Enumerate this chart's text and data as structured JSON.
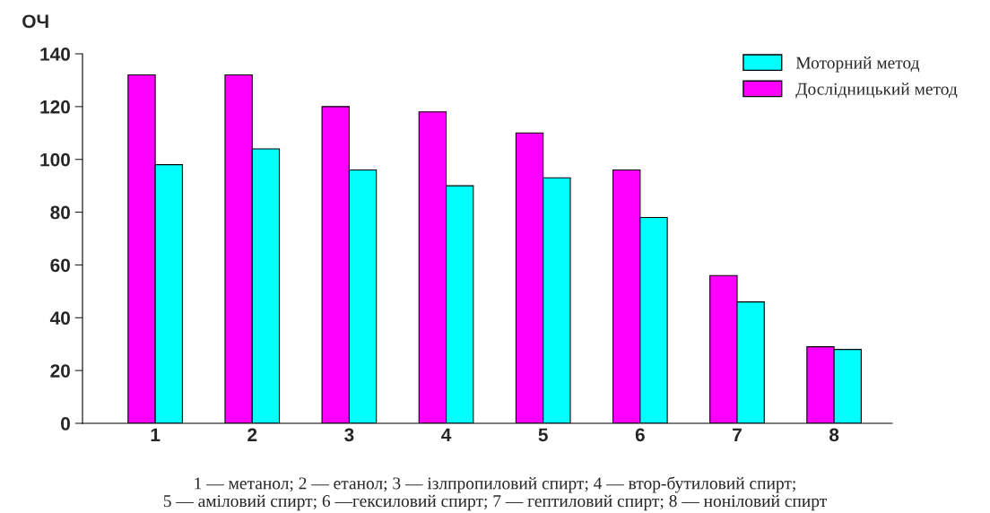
{
  "chart_data": {
    "type": "bar",
    "ylabel": "ОЧ",
    "categories": [
      "1",
      "2",
      "3",
      "4",
      "5",
      "6",
      "7",
      "8"
    ],
    "series": [
      {
        "name": "Дослідницький метод",
        "color": "#ff00ff",
        "values": [
          132,
          132,
          120,
          118,
          110,
          96,
          56,
          29
        ]
      },
      {
        "name": "Моторний метод",
        "color": "#00ffff",
        "values": [
          98,
          104,
          96,
          90,
          93,
          78,
          46,
          28
        ]
      }
    ],
    "ylim": [
      0,
      140
    ],
    "yticks": [
      0,
      20,
      40,
      60,
      80,
      100,
      120,
      140
    ],
    "grid": false,
    "legend": "top right",
    "annotations": [
      "1 — метанол; 2 — етанол; 3 — ізлпропиловий спирт; 4 — втор-бутиловий спирт;\n5 — аміловий спирт; 6 —гексиловий спирт; 7 — гептиловий спирт; 8 — ноніловий спирт"
    ]
  }
}
